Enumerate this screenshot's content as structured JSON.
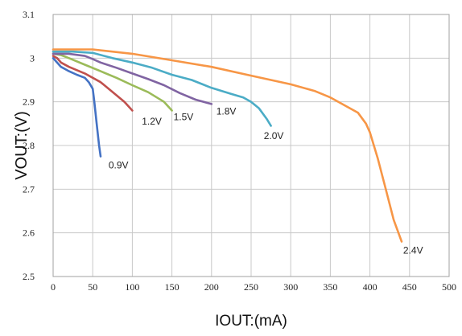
{
  "chart_data": {
    "type": "line",
    "xlabel": "IOUT:(mA)",
    "ylabel": "VOUT:(V)",
    "xlim": [
      0,
      500
    ],
    "ylim": [
      2.5,
      3.1
    ],
    "xticks": [
      0,
      50,
      100,
      150,
      200,
      250,
      300,
      350,
      400,
      450,
      500
    ],
    "yticks": [
      2.5,
      2.6,
      2.7,
      2.8,
      2.9,
      3,
      3.1
    ],
    "grid": true,
    "legend": "none",
    "series": [
      {
        "name": "0.9V",
        "color": "#4472c4",
        "x": [
          0,
          5,
          10,
          15,
          20,
          30,
          40,
          45,
          50,
          52,
          55,
          58,
          60
        ],
        "y": [
          3.0,
          2.99,
          2.98,
          2.975,
          2.97,
          2.962,
          2.955,
          2.945,
          2.93,
          2.9,
          2.85,
          2.8,
          2.775
        ],
        "label_x": 70,
        "label_y": 2.755
      },
      {
        "name": "1.2V",
        "color": "#c0504d",
        "x": [
          0,
          5,
          10,
          20,
          40,
          60,
          80,
          90,
          95,
          100
        ],
        "y": [
          3.005,
          3.0,
          2.99,
          2.98,
          2.965,
          2.945,
          2.915,
          2.9,
          2.89,
          2.88
        ],
        "label_x": 112,
        "label_y": 2.855
      },
      {
        "name": "1.5V",
        "color": "#9bbb59",
        "x": [
          0,
          10,
          20,
          40,
          60,
          80,
          100,
          120,
          140,
          150
        ],
        "y": [
          3.01,
          3.007,
          3.0,
          2.985,
          2.97,
          2.955,
          2.938,
          2.922,
          2.9,
          2.88
        ],
        "label_x": 152,
        "label_y": 2.865
      },
      {
        "name": "1.8V",
        "color": "#8064a2",
        "x": [
          0,
          20,
          40,
          50,
          60,
          80,
          100,
          120,
          140,
          160,
          180,
          200
        ],
        "y": [
          3.01,
          3.01,
          3.005,
          2.998,
          2.99,
          2.978,
          2.965,
          2.952,
          2.938,
          2.92,
          2.905,
          2.895
        ],
        "label_x": 206,
        "label_y": 2.878
      },
      {
        "name": "2.0V",
        "color": "#4bacc6",
        "x": [
          0,
          25,
          50,
          75,
          100,
          125,
          150,
          175,
          200,
          225,
          240,
          250,
          260,
          270,
          275
        ],
        "y": [
          3.015,
          3.015,
          3.012,
          3.0,
          2.99,
          2.978,
          2.962,
          2.95,
          2.932,
          2.918,
          2.91,
          2.9,
          2.885,
          2.86,
          2.845
        ],
        "label_x": 266,
        "label_y": 2.822
      },
      {
        "name": "2.4V",
        "color": "#f79646",
        "x": [
          0,
          50,
          100,
          150,
          200,
          250,
          300,
          330,
          350,
          370,
          385,
          395,
          400,
          410,
          420,
          430,
          440
        ],
        "y": [
          3.02,
          3.02,
          3.01,
          2.995,
          2.98,
          2.96,
          2.94,
          2.925,
          2.91,
          2.89,
          2.875,
          2.85,
          2.83,
          2.77,
          2.7,
          2.63,
          2.58
        ],
        "label_x": 442,
        "label_y": 2.56
      }
    ]
  }
}
